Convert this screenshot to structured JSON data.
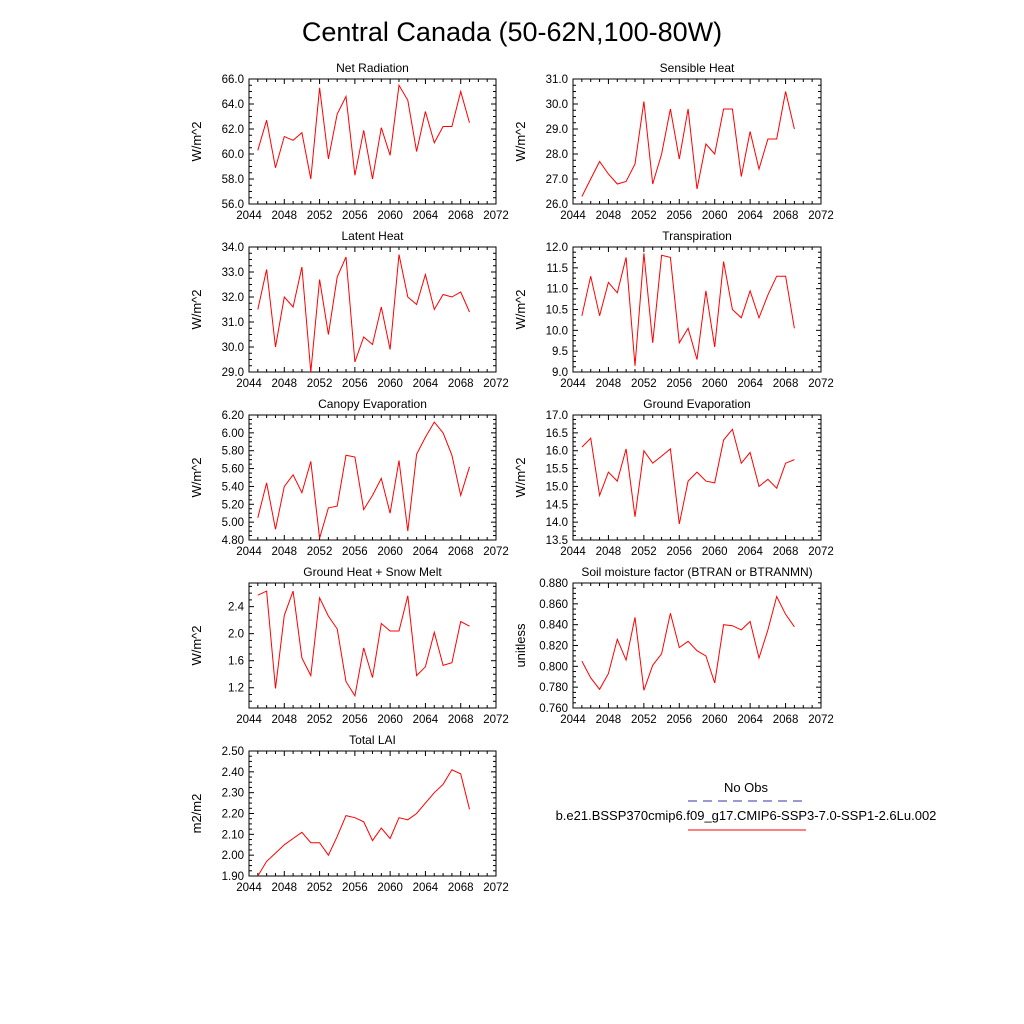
{
  "figure_title": "Central Canada (50-62N,100-80W)",
  "legend": {
    "entries": [
      {
        "label": "No Obs",
        "color": "#3333aa",
        "style": "dashed"
      },
      {
        "label": "b.e21.BSSP370cmip6.f09_g17.CMIP6-SSP3-7.0-SSP1-2.6Lu.002",
        "color": "#ff0000",
        "style": "solid"
      }
    ]
  },
  "chart_data": [
    {
      "type": "line",
      "title": "Net Radiation",
      "ylabel": "W/m^2",
      "xlim": [
        2044,
        2072
      ],
      "xticks": [
        "2044",
        "2048",
        "2052",
        "2056",
        "2060",
        "2064",
        "2068",
        "2072"
      ],
      "ylim": [
        56.0,
        66.0
      ],
      "yticks": [
        "56.0",
        "58.0",
        "60.0",
        "62.0",
        "64.0",
        "66.0"
      ],
      "color": "#ff0000",
      "x": [
        2045,
        2046,
        2047,
        2048,
        2049,
        2050,
        2051,
        2052,
        2053,
        2054,
        2055,
        2056,
        2057,
        2058,
        2059,
        2060,
        2061,
        2062,
        2063,
        2064,
        2065,
        2066,
        2067,
        2068,
        2069
      ],
      "values": [
        60.3,
        62.7,
        58.9,
        61.4,
        61.1,
        61.7,
        58.0,
        65.3,
        59.6,
        63.2,
        64.6,
        58.3,
        61.9,
        58.0,
        62.1,
        59.9,
        65.5,
        64.3,
        60.2,
        63.4,
        60.9,
        62.2,
        62.2,
        65.0,
        62.5
      ]
    },
    {
      "type": "line",
      "title": "Sensible Heat",
      "ylabel": "W/m^2",
      "xlim": [
        2044,
        2072
      ],
      "xticks": [
        "2044",
        "2048",
        "2052",
        "2056",
        "2060",
        "2064",
        "2068",
        "2072"
      ],
      "ylim": [
        26.0,
        31.0
      ],
      "yticks": [
        "26.0",
        "27.0",
        "28.0",
        "29.0",
        "30.0",
        "31.0"
      ],
      "color": "#ff0000",
      "x": [
        2045,
        2046,
        2047,
        2048,
        2049,
        2050,
        2051,
        2052,
        2053,
        2054,
        2055,
        2056,
        2057,
        2058,
        2059,
        2060,
        2061,
        2062,
        2063,
        2064,
        2065,
        2066,
        2067,
        2068,
        2069
      ],
      "values": [
        26.3,
        27.0,
        27.7,
        27.2,
        26.8,
        26.9,
        27.6,
        30.1,
        26.8,
        28.0,
        29.8,
        27.8,
        29.8,
        26.6,
        28.4,
        28.0,
        29.8,
        29.8,
        27.1,
        28.9,
        27.4,
        28.6,
        28.6,
        30.5,
        29.0
      ]
    },
    {
      "type": "line",
      "title": "Latent Heat",
      "ylabel": "W/m^2",
      "xlim": [
        2044,
        2072
      ],
      "xticks": [
        "2044",
        "2048",
        "2052",
        "2056",
        "2060",
        "2064",
        "2068",
        "2072"
      ],
      "ylim": [
        29.0,
        34.0
      ],
      "yticks": [
        "29.0",
        "30.0",
        "31.0",
        "32.0",
        "33.0",
        "34.0"
      ],
      "color": "#ff0000",
      "x": [
        2045,
        2046,
        2047,
        2048,
        2049,
        2050,
        2051,
        2052,
        2053,
        2054,
        2055,
        2056,
        2057,
        2058,
        2059,
        2060,
        2061,
        2062,
        2063,
        2064,
        2065,
        2066,
        2067,
        2068,
        2069
      ],
      "values": [
        31.5,
        33.1,
        30.0,
        32.0,
        31.6,
        33.2,
        29.0,
        32.7,
        30.5,
        32.8,
        33.6,
        29.4,
        30.4,
        30.1,
        31.6,
        29.9,
        33.7,
        32.0,
        31.7,
        32.9,
        31.5,
        32.1,
        32.0,
        32.2,
        31.4
      ]
    },
    {
      "type": "line",
      "title": "Transpiration",
      "ylabel": "W/m^2",
      "xlim": [
        2044,
        2072
      ],
      "xticks": [
        "2044",
        "2048",
        "2052",
        "2056",
        "2060",
        "2064",
        "2068",
        "2072"
      ],
      "ylim": [
        9.0,
        12.0
      ],
      "yticks": [
        "9.0",
        "9.5",
        "10.0",
        "10.5",
        "11.0",
        "11.5",
        "12.0"
      ],
      "color": "#ff0000",
      "x": [
        2045,
        2046,
        2047,
        2048,
        2049,
        2050,
        2051,
        2052,
        2053,
        2054,
        2055,
        2056,
        2057,
        2058,
        2059,
        2060,
        2061,
        2062,
        2063,
        2064,
        2065,
        2066,
        2067,
        2068,
        2069
      ],
      "values": [
        10.35,
        11.3,
        10.35,
        11.15,
        10.9,
        11.75,
        9.15,
        11.85,
        9.7,
        11.8,
        11.75,
        9.7,
        10.05,
        9.3,
        10.95,
        9.6,
        11.65,
        10.5,
        10.3,
        10.95,
        10.3,
        10.85,
        11.3,
        11.3,
        10.05
      ]
    },
    {
      "type": "line",
      "title": "Canopy Evaporation",
      "ylabel": "W/m^2",
      "xlim": [
        2044,
        2072
      ],
      "xticks": [
        "2044",
        "2048",
        "2052",
        "2056",
        "2060",
        "2064",
        "2068",
        "2072"
      ],
      "ylim": [
        4.8,
        6.2
      ],
      "yticks": [
        "4.80",
        "5.00",
        "5.20",
        "5.40",
        "5.60",
        "5.80",
        "6.00",
        "6.20"
      ],
      "color": "#ff0000",
      "x": [
        2045,
        2046,
        2047,
        2048,
        2049,
        2050,
        2051,
        2052,
        2053,
        2054,
        2055,
        2056,
        2057,
        2058,
        2059,
        2060,
        2061,
        2062,
        2063,
        2064,
        2065,
        2066,
        2067,
        2068,
        2069
      ],
      "values": [
        5.05,
        5.44,
        4.92,
        5.4,
        5.53,
        5.33,
        5.68,
        4.82,
        5.16,
        5.18,
        5.75,
        5.73,
        5.14,
        5.3,
        5.49,
        5.1,
        5.69,
        4.9,
        5.76,
        5.95,
        6.12,
        6.0,
        5.75,
        5.3,
        5.62
      ]
    },
    {
      "type": "line",
      "title": "Ground Evaporation",
      "ylabel": "W/m^2",
      "xlim": [
        2044,
        2072
      ],
      "xticks": [
        "2044",
        "2048",
        "2052",
        "2056",
        "2060",
        "2064",
        "2068",
        "2072"
      ],
      "ylim": [
        13.5,
        17.0
      ],
      "yticks": [
        "13.5",
        "14.0",
        "14.5",
        "15.0",
        "15.5",
        "16.0",
        "16.5",
        "17.0"
      ],
      "color": "#ff0000",
      "x": [
        2045,
        2046,
        2047,
        2048,
        2049,
        2050,
        2051,
        2052,
        2053,
        2054,
        2055,
        2056,
        2057,
        2058,
        2059,
        2060,
        2061,
        2062,
        2063,
        2064,
        2065,
        2066,
        2067,
        2068,
        2069
      ],
      "values": [
        16.1,
        16.35,
        14.75,
        15.4,
        15.15,
        16.05,
        14.15,
        16.0,
        15.65,
        15.85,
        16.05,
        13.95,
        15.15,
        15.4,
        15.15,
        15.1,
        16.3,
        16.6,
        15.65,
        15.95,
        15.0,
        15.2,
        14.95,
        15.65,
        15.75
      ]
    },
    {
      "type": "line",
      "title": "Ground Heat + Snow Melt",
      "ylabel": "W/m^2",
      "xlim": [
        2044,
        2072
      ],
      "xticks": [
        "2044",
        "2048",
        "2052",
        "2056",
        "2060",
        "2064",
        "2068",
        "2072"
      ],
      "ylim": [
        0.9,
        2.75
      ],
      "yticks": [
        "1.2",
        "1.6",
        "2.0",
        "2.4"
      ],
      "color": "#ff0000",
      "x": [
        2045,
        2046,
        2047,
        2048,
        2049,
        2050,
        2051,
        2052,
        2053,
        2054,
        2055,
        2056,
        2057,
        2058,
        2059,
        2060,
        2061,
        2062,
        2063,
        2064,
        2065,
        2066,
        2067,
        2068,
        2069
      ],
      "values": [
        2.57,
        2.63,
        1.19,
        2.27,
        2.63,
        1.64,
        1.38,
        2.53,
        2.26,
        2.07,
        1.29,
        1.08,
        1.79,
        1.35,
        2.15,
        2.04,
        2.04,
        2.56,
        1.38,
        1.51,
        2.02,
        1.53,
        1.57,
        2.18,
        2.11
      ]
    },
    {
      "type": "line",
      "title": "Soil moisture factor (BTRAN or BTRANMN)",
      "ylabel": "unitless",
      "xlim": [
        2044,
        2072
      ],
      "xticks": [
        "2044",
        "2048",
        "2052",
        "2056",
        "2060",
        "2064",
        "2068",
        "2072"
      ],
      "ylim": [
        0.76,
        0.88
      ],
      "yticks": [
        "0.760",
        "0.780",
        "0.800",
        "0.820",
        "0.840",
        "0.860",
        "0.880"
      ],
      "color": "#ff0000",
      "x": [
        2045,
        2046,
        2047,
        2048,
        2049,
        2050,
        2051,
        2052,
        2053,
        2054,
        2055,
        2056,
        2057,
        2058,
        2059,
        2060,
        2061,
        2062,
        2063,
        2064,
        2065,
        2066,
        2067,
        2068,
        2069
      ],
      "values": [
        0.805,
        0.789,
        0.778,
        0.793,
        0.826,
        0.806,
        0.847,
        0.777,
        0.801,
        0.812,
        0.851,
        0.818,
        0.824,
        0.815,
        0.81,
        0.784,
        0.84,
        0.839,
        0.835,
        0.843,
        0.808,
        0.835,
        0.867,
        0.85,
        0.838
      ]
    },
    {
      "type": "line",
      "title": "Total LAI",
      "ylabel": "m2/m2",
      "xlim": [
        2044,
        2072
      ],
      "xticks": [
        "2044",
        "2048",
        "2052",
        "2056",
        "2060",
        "2064",
        "2068",
        "2072"
      ],
      "ylim": [
        1.9,
        2.5
      ],
      "yticks": [
        "1.90",
        "2.00",
        "2.10",
        "2.20",
        "2.30",
        "2.40",
        "2.50"
      ],
      "color": "#ff0000",
      "x": [
        2045,
        2046,
        2047,
        2048,
        2049,
        2050,
        2051,
        2052,
        2053,
        2054,
        2055,
        2056,
        2057,
        2058,
        2059,
        2060,
        2061,
        2062,
        2063,
        2064,
        2065,
        2066,
        2067,
        2068,
        2069
      ],
      "values": [
        1.9,
        1.97,
        2.01,
        2.05,
        2.08,
        2.11,
        2.06,
        2.06,
        2.0,
        2.09,
        2.19,
        2.18,
        2.16,
        2.07,
        2.13,
        2.08,
        2.18,
        2.17,
        2.2,
        2.25,
        2.3,
        2.34,
        2.41,
        2.39,
        2.22
      ]
    }
  ]
}
